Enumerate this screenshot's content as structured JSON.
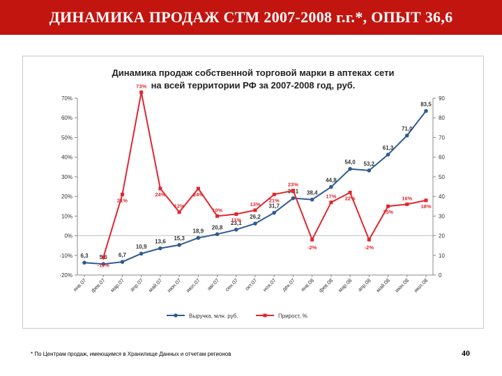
{
  "slide": {
    "banner_title": "ДИНАМИКА ПРОДАЖ СТМ 2007-2008 г.г.*, ОПЫТ 36,6",
    "footnote": "* По Центрам продаж, имеющимся в Хранилище Данных и отчетам регионов",
    "page_number": "40"
  },
  "colors": {
    "banner": "#c2150f",
    "revenue_series": "#2e5b8f",
    "growth_series": "#e0262e"
  },
  "chart_data": {
    "type": "line",
    "title_line1": "Динамика продаж собственной торговой марки в аптеках сети",
    "title_line2": "на всей территории РФ за 2007-2008 год, руб.",
    "categories": [
      "янв.07",
      "фев.07",
      "мар.07",
      "апр.07",
      "май.07",
      "июн.07",
      "июл.07",
      "авг.07",
      "сен.07",
      "окт.07",
      "ноя.07",
      "дек.07",
      "янв.08",
      "фев.08",
      "мар.08",
      "апр.08",
      "май.08",
      "июн.08",
      "июл.08"
    ],
    "left_axis": {
      "ticks": [
        "70%",
        "60%",
        "50%",
        "40%",
        "30%",
        "20%",
        "10%",
        "0%",
        "-10%",
        "-20%"
      ],
      "ylim": [
        -20,
        70
      ]
    },
    "right_axis": {
      "ticks": [
        "90",
        "80",
        "70",
        "60",
        "50",
        "40",
        "30",
        "20",
        "10",
        "0"
      ],
      "ylim": [
        0,
        90
      ]
    },
    "legend_position": "bottom",
    "series": [
      {
        "name": "Выручка, млн. руб.",
        "axis": "right",
        "values": [
          6.3,
          5.6,
          6.7,
          10.9,
          13.6,
          15.3,
          18.9,
          20.8,
          23.1,
          26.2,
          31.7,
          39.1,
          38.4,
          44.8,
          54.0,
          53.2,
          61.3,
          71.0,
          83.5
        ],
        "labels": [
          "6,3",
          "5,6",
          "6,7",
          "10,9",
          "13,6",
          "15,3",
          "18,9",
          "20,8",
          "23,1",
          "26,2",
          "31,7",
          "39,1",
          "38,4",
          "44,8",
          "54,0",
          "53,2",
          "61,3",
          "71,0",
          "83,5"
        ]
      },
      {
        "name": "Прирост, %",
        "axis": "left",
        "values": [
          null,
          -11,
          21,
          73,
          24,
          12,
          24,
          10,
          11,
          13,
          21,
          23,
          -2,
          17,
          22,
          -2,
          15,
          16,
          18
        ],
        "labels": [
          "",
          "-11%",
          "21%",
          "73%",
          "24%",
          "12%",
          "24%",
          "10%",
          "11%",
          "13%",
          "21%",
          "23%",
          "-2%",
          "17%",
          "22%",
          "-2%",
          "15%",
          "16%",
          "18%"
        ]
      }
    ]
  }
}
